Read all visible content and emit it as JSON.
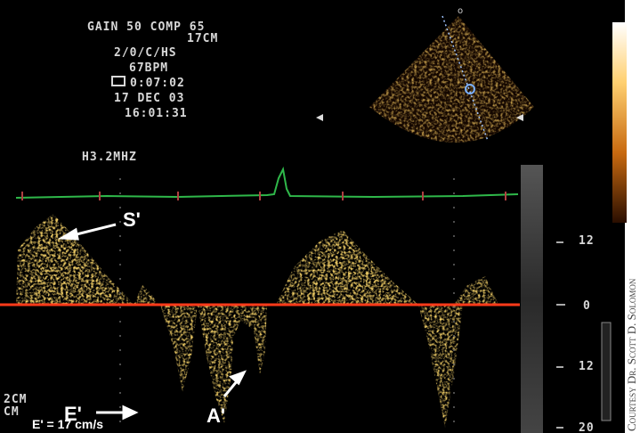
{
  "header": {
    "settings": [
      "GAIN 50 COMP 65",
      "17CM",
      "2/0/C/HS",
      "67BPM",
      "0:07:02",
      "17 DEC 03",
      "16:01:31"
    ],
    "probe": "H3.2MHZ"
  },
  "annotations": {
    "s_prime": "S'",
    "e_prime": "E'",
    "a_prime": "A'",
    "measurement": "E' = 17 cm/s"
  },
  "scale": {
    "labels": [
      "12",
      "0",
      "12",
      "20"
    ],
    "unit_lines": [
      "2CM",
      "CM"
    ]
  },
  "credit": "Courtesy Dr. Scott D. Solomon"
}
